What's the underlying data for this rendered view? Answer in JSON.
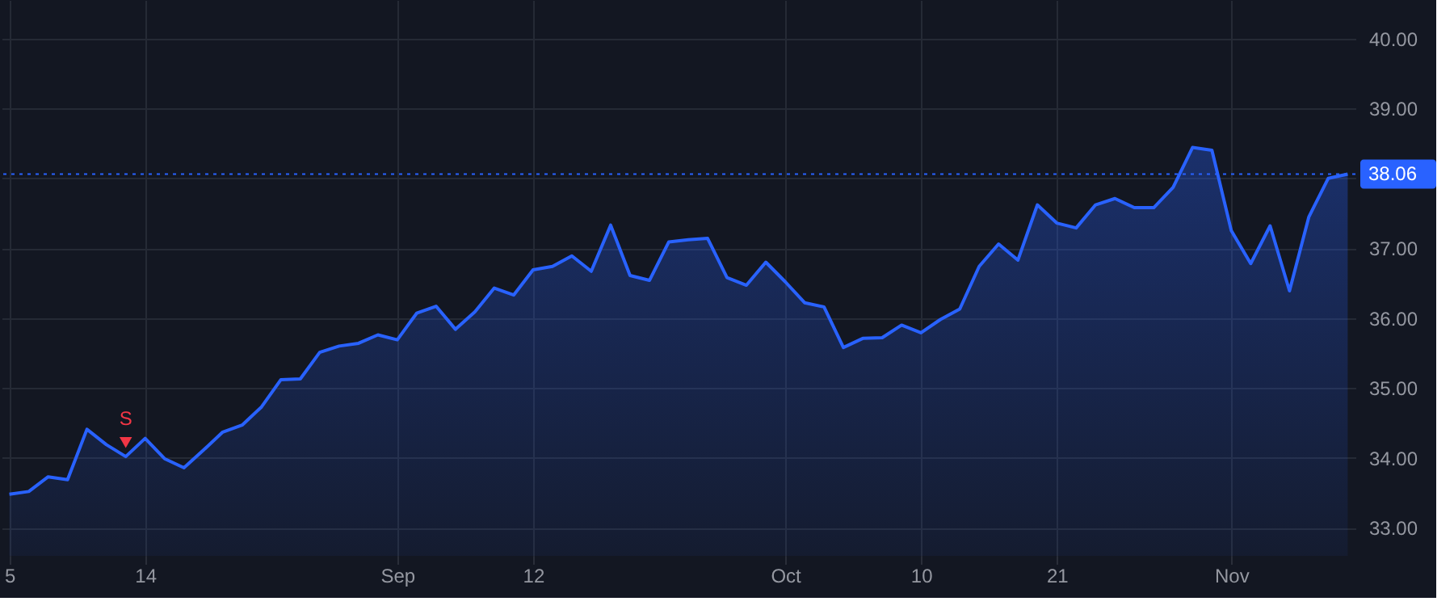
{
  "chart_data": {
    "type": "area",
    "categories": [
      "5",
      null,
      null,
      null,
      null,
      null,
      null,
      "14",
      null,
      null,
      null,
      null,
      null,
      null,
      null,
      null,
      null,
      null,
      null,
      null,
      "Sep",
      null,
      null,
      null,
      null,
      null,
      null,
      "12",
      null,
      null,
      null,
      null,
      null,
      null,
      null,
      null,
      null,
      null,
      null,
      null,
      "Oct",
      null,
      null,
      null,
      null,
      null,
      null,
      "10",
      null,
      null,
      null,
      null,
      null,
      null,
      "21",
      null,
      null,
      null,
      null,
      null,
      null,
      null,
      null,
      "Nov",
      null,
      null,
      null,
      null,
      null,
      null
    ],
    "series": [
      {
        "color": "#2962ff",
        "values": [
          33.48,
          33.52,
          33.73,
          33.69,
          34.41,
          34.19,
          34.02,
          34.28,
          33.99,
          33.86,
          34.11,
          34.37,
          34.47,
          34.73,
          35.12,
          35.13,
          35.51,
          35.6,
          35.64,
          35.76,
          35.69,
          36.07,
          36.17,
          35.84,
          36.09,
          36.43,
          36.33,
          36.69,
          36.74,
          36.89,
          36.67,
          37.33,
          36.61,
          36.54,
          37.09,
          37.12,
          37.14,
          36.58,
          36.47,
          36.8,
          36.52,
          36.22,
          36.16,
          35.58,
          35.71,
          35.72,
          35.9,
          35.79,
          35.98,
          36.13,
          36.74,
          37.06,
          36.83,
          37.62,
          37.36,
          37.29,
          37.62,
          37.71,
          37.58,
          37.58,
          37.87,
          38.44,
          38.4,
          37.25,
          36.78,
          37.32,
          36.39,
          37.45,
          38.0,
          38.06
        ]
      },
      {
        "type": "scatter",
        "name": "S",
        "color": "#f23645",
        "marker": "triangle",
        "values": [
          null,
          null,
          null,
          null,
          null,
          null,
          34.22,
          null,
          null,
          null,
          null,
          null,
          null,
          null,
          null,
          null,
          null,
          null,
          null,
          null,
          null,
          null,
          null,
          null,
          null,
          null,
          null,
          null,
          null,
          null,
          null,
          null,
          null,
          null,
          null,
          null,
          null,
          null,
          null,
          null,
          null,
          null,
          null,
          null,
          null,
          null,
          null,
          null,
          null,
          null,
          null,
          null,
          null,
          null,
          null,
          null,
          null,
          null,
          null,
          null,
          null,
          null,
          null,
          null,
          null,
          null,
          null,
          null,
          null,
          null
        ]
      }
    ],
    "ylim": [
      32.6,
      40.55
    ],
    "yticks": [
      {
        "value": 33,
        "label": "33.00"
      },
      {
        "value": 34,
        "label": "34.00"
      },
      {
        "value": 35,
        "label": "35.00"
      },
      {
        "value": 36,
        "label": "36.00"
      },
      {
        "value": 37,
        "label": "37.00"
      },
      {
        "value": 38,
        "label": null
      },
      {
        "value": 39,
        "label": "39.00"
      },
      {
        "value": 40,
        "label": "40.00"
      }
    ],
    "grid": true,
    "ref_lines": [
      {
        "axis": "y",
        "value": 38.06,
        "label": "38.06",
        "color": "#2962ff",
        "line_style": "dotted"
      }
    ]
  }
}
